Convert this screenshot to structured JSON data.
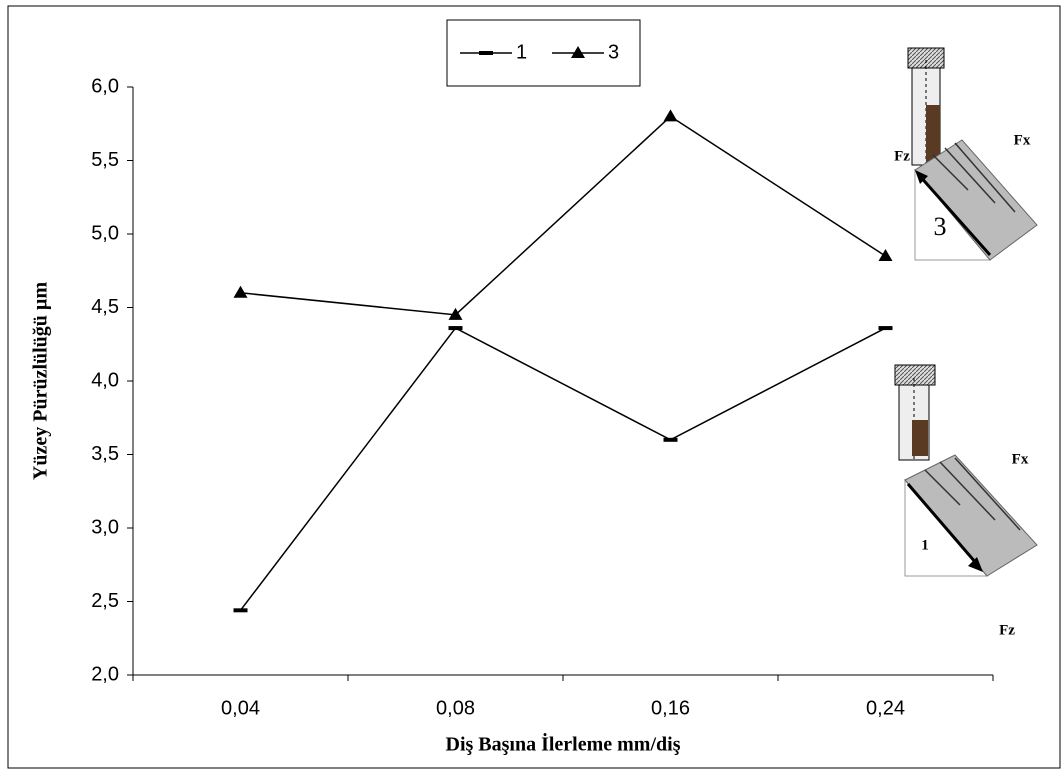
{
  "chart_data": {
    "type": "line",
    "x_label": "Diş Başına İlerleme mm/diş",
    "y_label": "Yüzey Pürüzlülüğü µm",
    "categories": [
      "0,04",
      "0,08",
      "0,16",
      "0,24"
    ],
    "series": [
      {
        "name": "1",
        "color": "#000000",
        "marker": "dash",
        "values": [
          2.44,
          4.36,
          3.6,
          4.36
        ]
      },
      {
        "name": "3",
        "color": "#000000",
        "marker": "triangle",
        "values": [
          4.6,
          4.45,
          5.8,
          4.85
        ]
      }
    ],
    "ylim": [
      2,
      6
    ],
    "yticks": [
      {
        "value": 2,
        "label": "2,0"
      },
      {
        "value": 2.5,
        "label": "2,5"
      },
      {
        "value": 3,
        "label": "3,0"
      },
      {
        "value": 3.5,
        "label": "3,5"
      },
      {
        "value": 4,
        "label": "4,0"
      },
      {
        "value": 4.5,
        "label": "4,5"
      },
      {
        "value": 5,
        "label": "5,0"
      },
      {
        "value": 5.5,
        "label": "5,5"
      },
      {
        "value": 6,
        "label": "6,0"
      }
    ],
    "grid": false,
    "legend": "top",
    "annotations": [
      "Fz",
      "Fx",
      "3",
      "Fx",
      "1",
      "Fz"
    ]
  }
}
